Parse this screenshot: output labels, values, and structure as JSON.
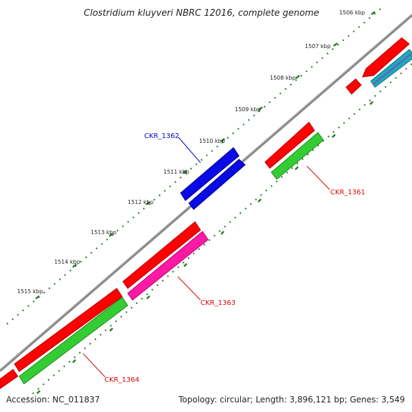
{
  "header": {
    "title": "Clostridium kluyveri NBRC 12016, complete genome"
  },
  "footer": {
    "accession": "Accession: NC_011837",
    "summary": "Topology: circular; Length: 3,896,121 bp; Genes: 3,549"
  },
  "ruler": {
    "ticks": [
      "1506 kbp",
      "1507 kbp",
      "1508 kbp",
      "1509 kbp",
      "1510 kbp",
      "1511 kbp",
      "1512 kbp",
      "1513 kbp",
      "1514 kbp",
      "1515 kbp"
    ]
  },
  "genes": [
    {
      "name": "CKR_1361",
      "color": "#e00000"
    },
    {
      "name": "CKR_1362",
      "color": "#0000cc"
    },
    {
      "name": "CKR_1363",
      "color": "#e00000"
    },
    {
      "name": "CKR_1364",
      "color": "#e00000"
    }
  ],
  "colors": {
    "forward_gene": "#ff0000",
    "cds_green": "#33cc33",
    "cds_blue": "#0a0ae6",
    "cds_magenta": "#ff1aa3",
    "cds_cyan": "#1fa8b8",
    "backbone": "#888888",
    "ruler_dots": "#2a7a2a"
  }
}
